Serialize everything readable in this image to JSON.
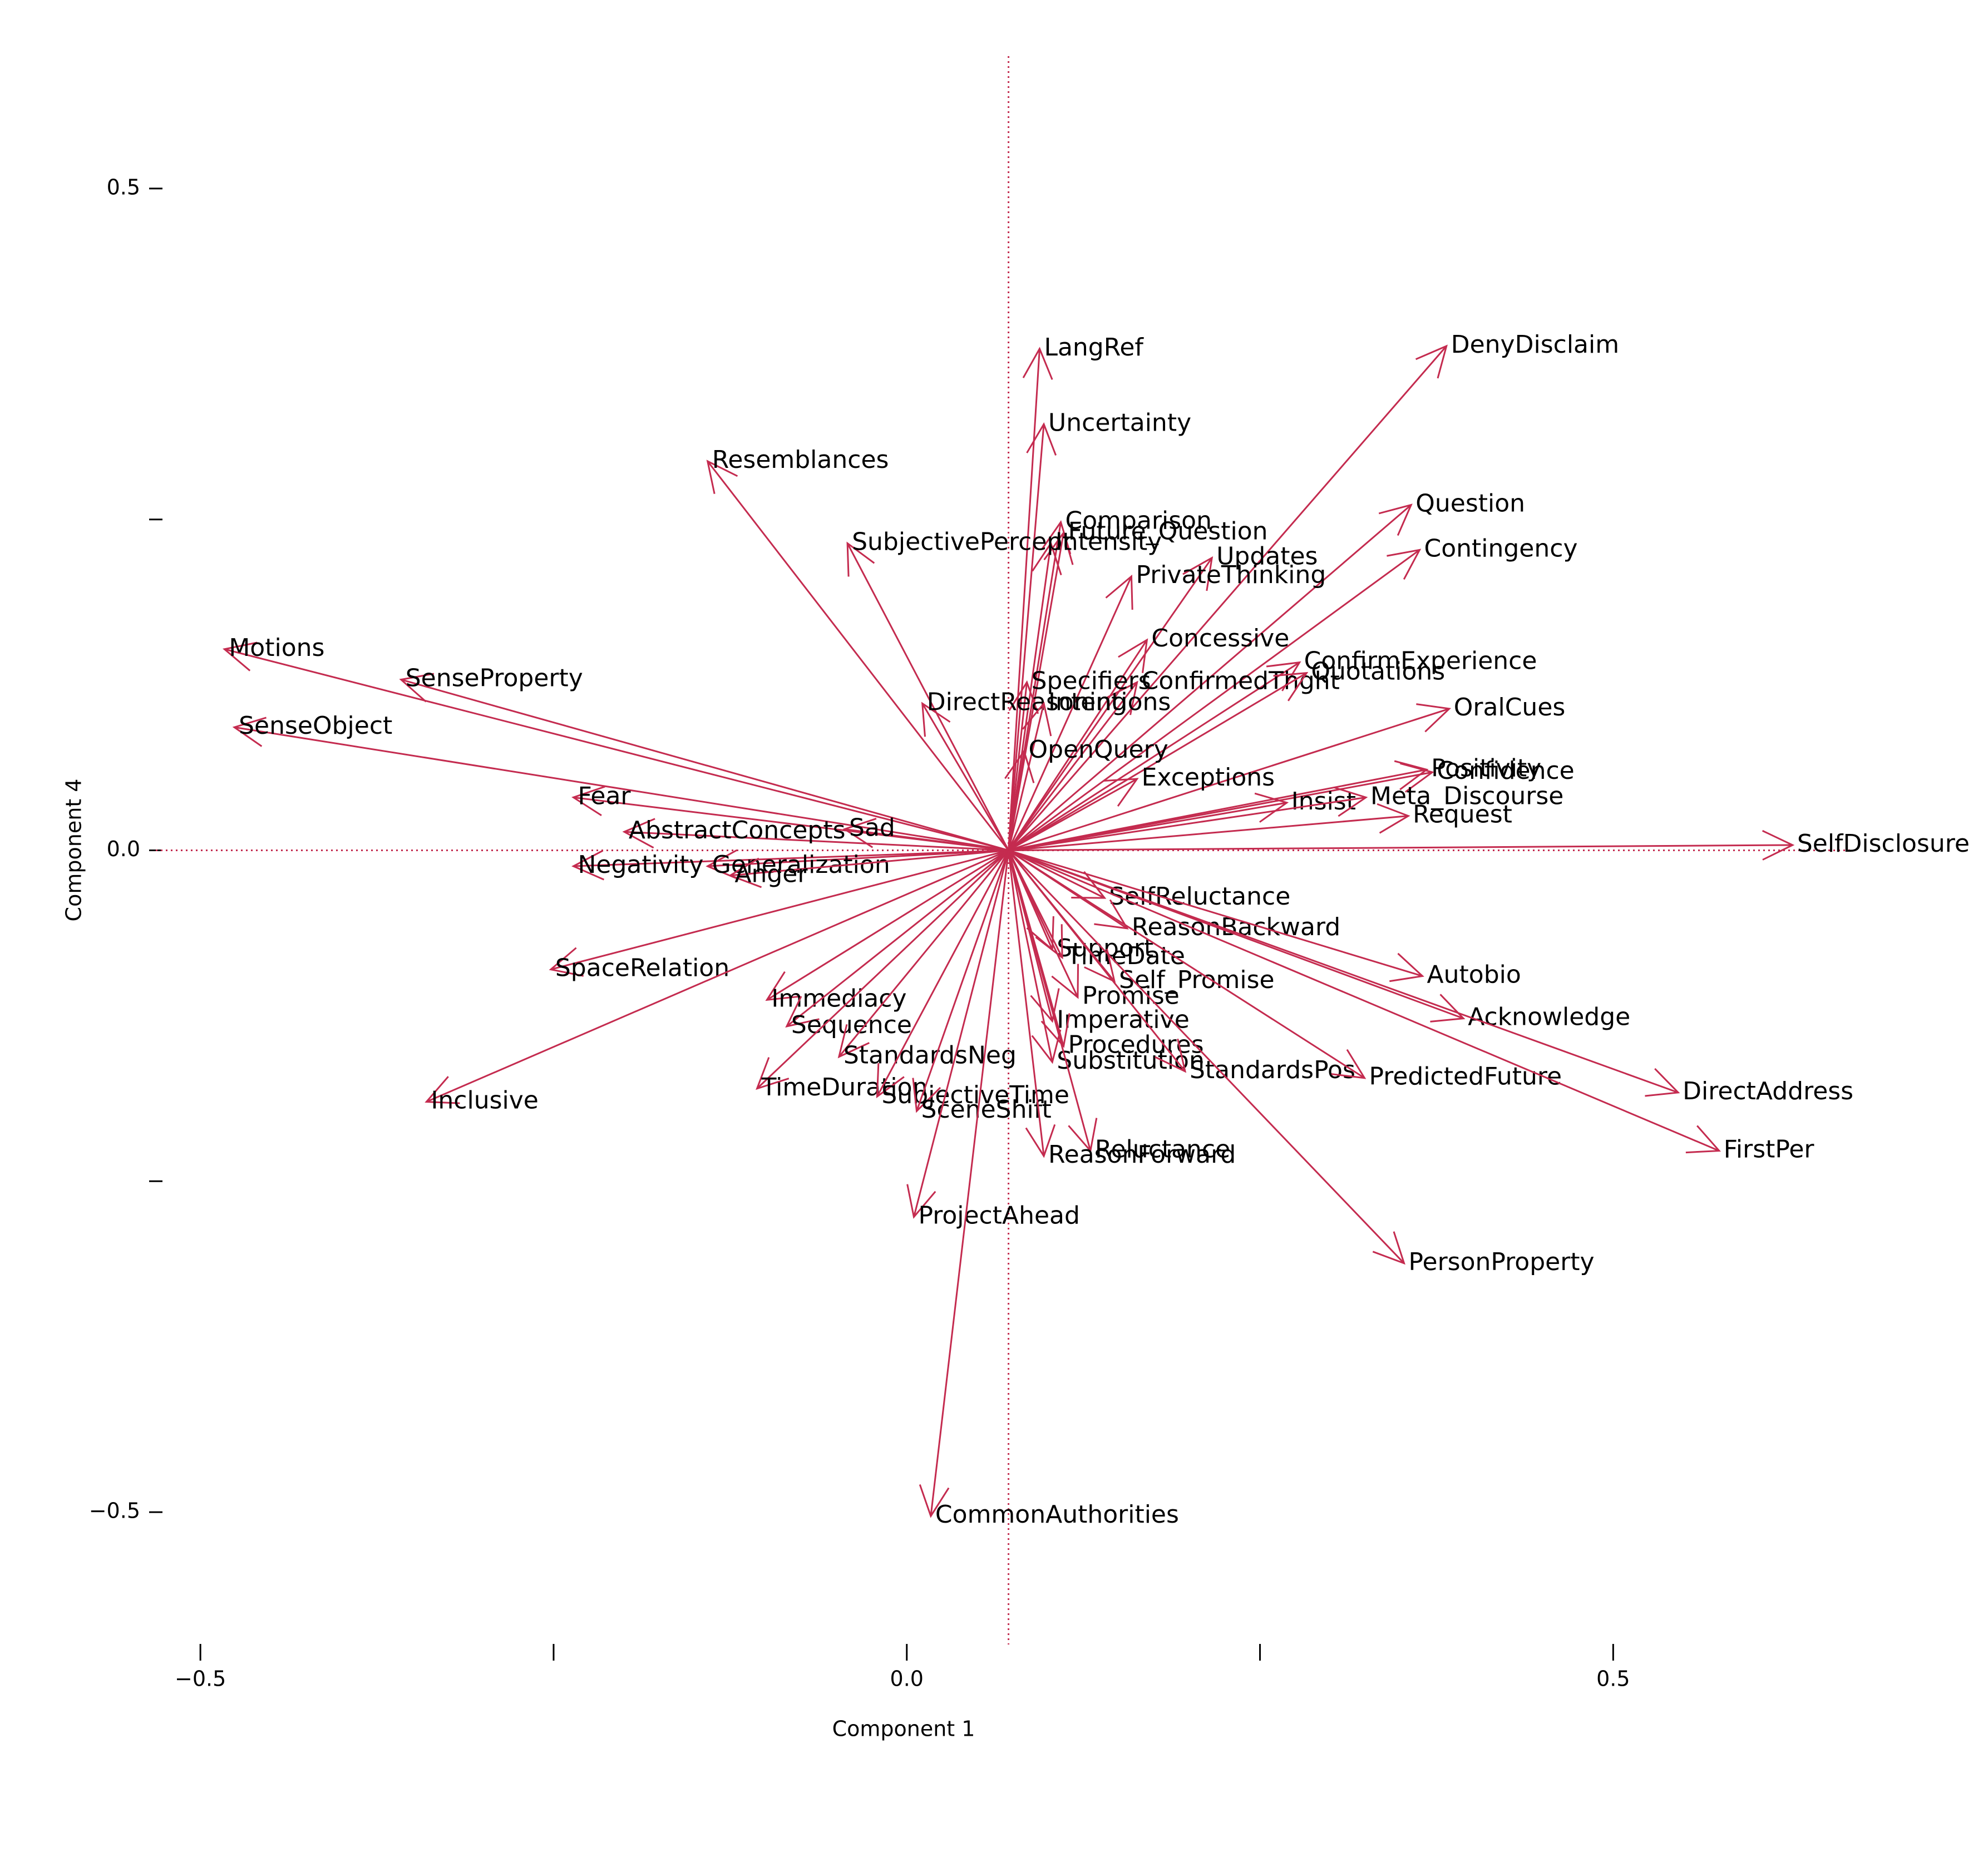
{
  "chart_data": {
    "type": "biplot",
    "x_label": "Component 1",
    "y_label": "Component 4",
    "xlim": [
      -0.53,
      0.67
    ],
    "ylim": [
      -0.6,
      0.6
    ],
    "xticks": [
      {
        "value": -0.5,
        "label": "−0.5"
      },
      {
        "value": -0.25,
        "label": null
      },
      {
        "value": 0,
        "label": "0.0"
      },
      {
        "value": 0.25,
        "label": null
      },
      0.5
    ],
    "yticks": [
      {
        "value": -0.5,
        "label": "−0.5"
      },
      {
        "value": -0.25,
        "label": null
      },
      {
        "value": 0,
        "label": "0.0"
      },
      {
        "value": 0.25,
        "label": null
      },
      0.5
    ],
    "origin": {
      "x": 0.072,
      "y": 0
    },
    "color": "#c42b4f",
    "vectors": [
      {
        "name": "LangRef",
        "x": 0.094,
        "y": 0.379
      },
      {
        "name": "Uncertainty",
        "x": 0.097,
        "y": 0.322
      },
      {
        "name": "DenyDisclaim",
        "x": 0.382,
        "y": 0.381
      },
      {
        "name": "Resemblances",
        "x": -0.141,
        "y": 0.294
      },
      {
        "name": "Question",
        "x": 0.357,
        "y": 0.261
      },
      {
        "name": "Contingency",
        "x": 0.363,
        "y": 0.227
      },
      {
        "name": "Comparison",
        "x": 0.109,
        "y": 0.248
      },
      {
        "name": "Future_Question",
        "x": 0.111,
        "y": 0.24
      },
      {
        "name": "Intensity",
        "x": 0.102,
        "y": 0.232
      },
      {
        "name": "SubjectivePercept",
        "x": -0.042,
        "y": 0.232
      },
      {
        "name": "Updates",
        "x": 0.216,
        "y": 0.221
      },
      {
        "name": "PrivateThinking",
        "x": 0.159,
        "y": 0.207
      },
      {
        "name": "Motions",
        "x": -0.483,
        "y": 0.152
      },
      {
        "name": "SenseProperty",
        "x": -0.358,
        "y": 0.129
      },
      {
        "name": "SenseObject",
        "x": -0.476,
        "y": 0.093
      },
      {
        "name": "Concessive",
        "x": 0.17,
        "y": 0.159
      },
      {
        "name": "ConfirmExperience",
        "x": 0.278,
        "y": 0.142
      },
      {
        "name": "ConfirmedThght",
        "x": 0.163,
        "y": 0.127
      },
      {
        "name": "Quotations",
        "x": 0.283,
        "y": 0.134
      },
      {
        "name": "OralCues",
        "x": 0.384,
        "y": 0.107
      },
      {
        "name": "Specifiers",
        "x": 0.085,
        "y": 0.127
      },
      {
        "name": "DirectReasoning",
        "x": 0.011,
        "y": 0.111
      },
      {
        "name": "Intentions",
        "x": 0.097,
        "y": 0.111
      },
      {
        "name": "OpenQuery",
        "x": 0.083,
        "y": 0.075
      },
      {
        "name": "Positivity",
        "x": 0.368,
        "y": 0.061
      },
      {
        "name": "Confidence",
        "x": 0.372,
        "y": 0.059
      },
      {
        "name": "Exceptions",
        "x": 0.163,
        "y": 0.054
      },
      {
        "name": "Insist",
        "x": 0.269,
        "y": 0.036
      },
      {
        "name": "Meta_Discourse",
        "x": 0.325,
        "y": 0.04
      },
      {
        "name": "Request",
        "x": 0.355,
        "y": 0.026
      },
      {
        "name": "SelfDisclosure",
        "x": 0.627,
        "y": 0.004
      },
      {
        "name": "Fear",
        "x": -0.236,
        "y": 0.04
      },
      {
        "name": "AbstractConcepts",
        "x": -0.2,
        "y": 0.014
      },
      {
        "name": "Sad",
        "x": -0.044,
        "y": 0.016
      },
      {
        "name": "Negativity",
        "x": -0.236,
        "y": -0.012
      },
      {
        "name": "Generalization",
        "x": -0.141,
        "y": -0.012
      },
      {
        "name": "Anger",
        "x": -0.125,
        "y": -0.019
      },
      {
        "name": "SelfReluctance",
        "x": 0.14,
        "y": -0.036
      },
      {
        "name": "ReasonBackward",
        "x": 0.156,
        "y": -0.059
      },
      {
        "name": "Support",
        "x": 0.103,
        "y": -0.075
      },
      {
        "name": "TimeDate",
        "x": 0.11,
        "y": -0.081
      },
      {
        "name": "Autobio",
        "x": 0.365,
        "y": -0.095
      },
      {
        "name": "Self_Promise",
        "x": 0.147,
        "y": -0.099
      },
      {
        "name": "Promise",
        "x": 0.121,
        "y": -0.111
      },
      {
        "name": "Acknowledge",
        "x": 0.394,
        "y": -0.127
      },
      {
        "name": "Imperative",
        "x": 0.103,
        "y": -0.129
      },
      {
        "name": "Procedures",
        "x": 0.111,
        "y": -0.148
      },
      {
        "name": "Substitution",
        "x": 0.103,
        "y": -0.16
      },
      {
        "name": "StandardsPos",
        "x": 0.197,
        "y": -0.167
      },
      {
        "name": "PredictedFuture",
        "x": 0.324,
        "y": -0.172
      },
      {
        "name": "DirectAddress",
        "x": 0.546,
        "y": -0.183
      },
      {
        "name": "FirstPer",
        "x": 0.575,
        "y": -0.227
      },
      {
        "name": "SpaceRelation",
        "x": -0.252,
        "y": -0.09
      },
      {
        "name": "Immediacy",
        "x": -0.099,
        "y": -0.113
      },
      {
        "name": "Sequence",
        "x": -0.085,
        "y": -0.133
      },
      {
        "name": "StandardsNeg",
        "x": -0.048,
        "y": -0.156
      },
      {
        "name": "TimeDuration",
        "x": -0.106,
        "y": -0.18
      },
      {
        "name": "SubjectiveTime",
        "x": -0.021,
        "y": -0.186
      },
      {
        "name": "SceneShift",
        "x": 0.007,
        "y": -0.197
      },
      {
        "name": "Inclusive",
        "x": -0.34,
        "y": -0.19
      },
      {
        "name": "Reluctance",
        "x": 0.13,
        "y": -0.227
      },
      {
        "name": "ReasonForward",
        "x": 0.097,
        "y": -0.231
      },
      {
        "name": "ProjectAhead",
        "x": 0.005,
        "y": -0.277
      },
      {
        "name": "PersonProperty",
        "x": 0.352,
        "y": -0.312
      },
      {
        "name": "CommonAuthorities",
        "x": 0.017,
        "y": -0.503
      }
    ]
  }
}
